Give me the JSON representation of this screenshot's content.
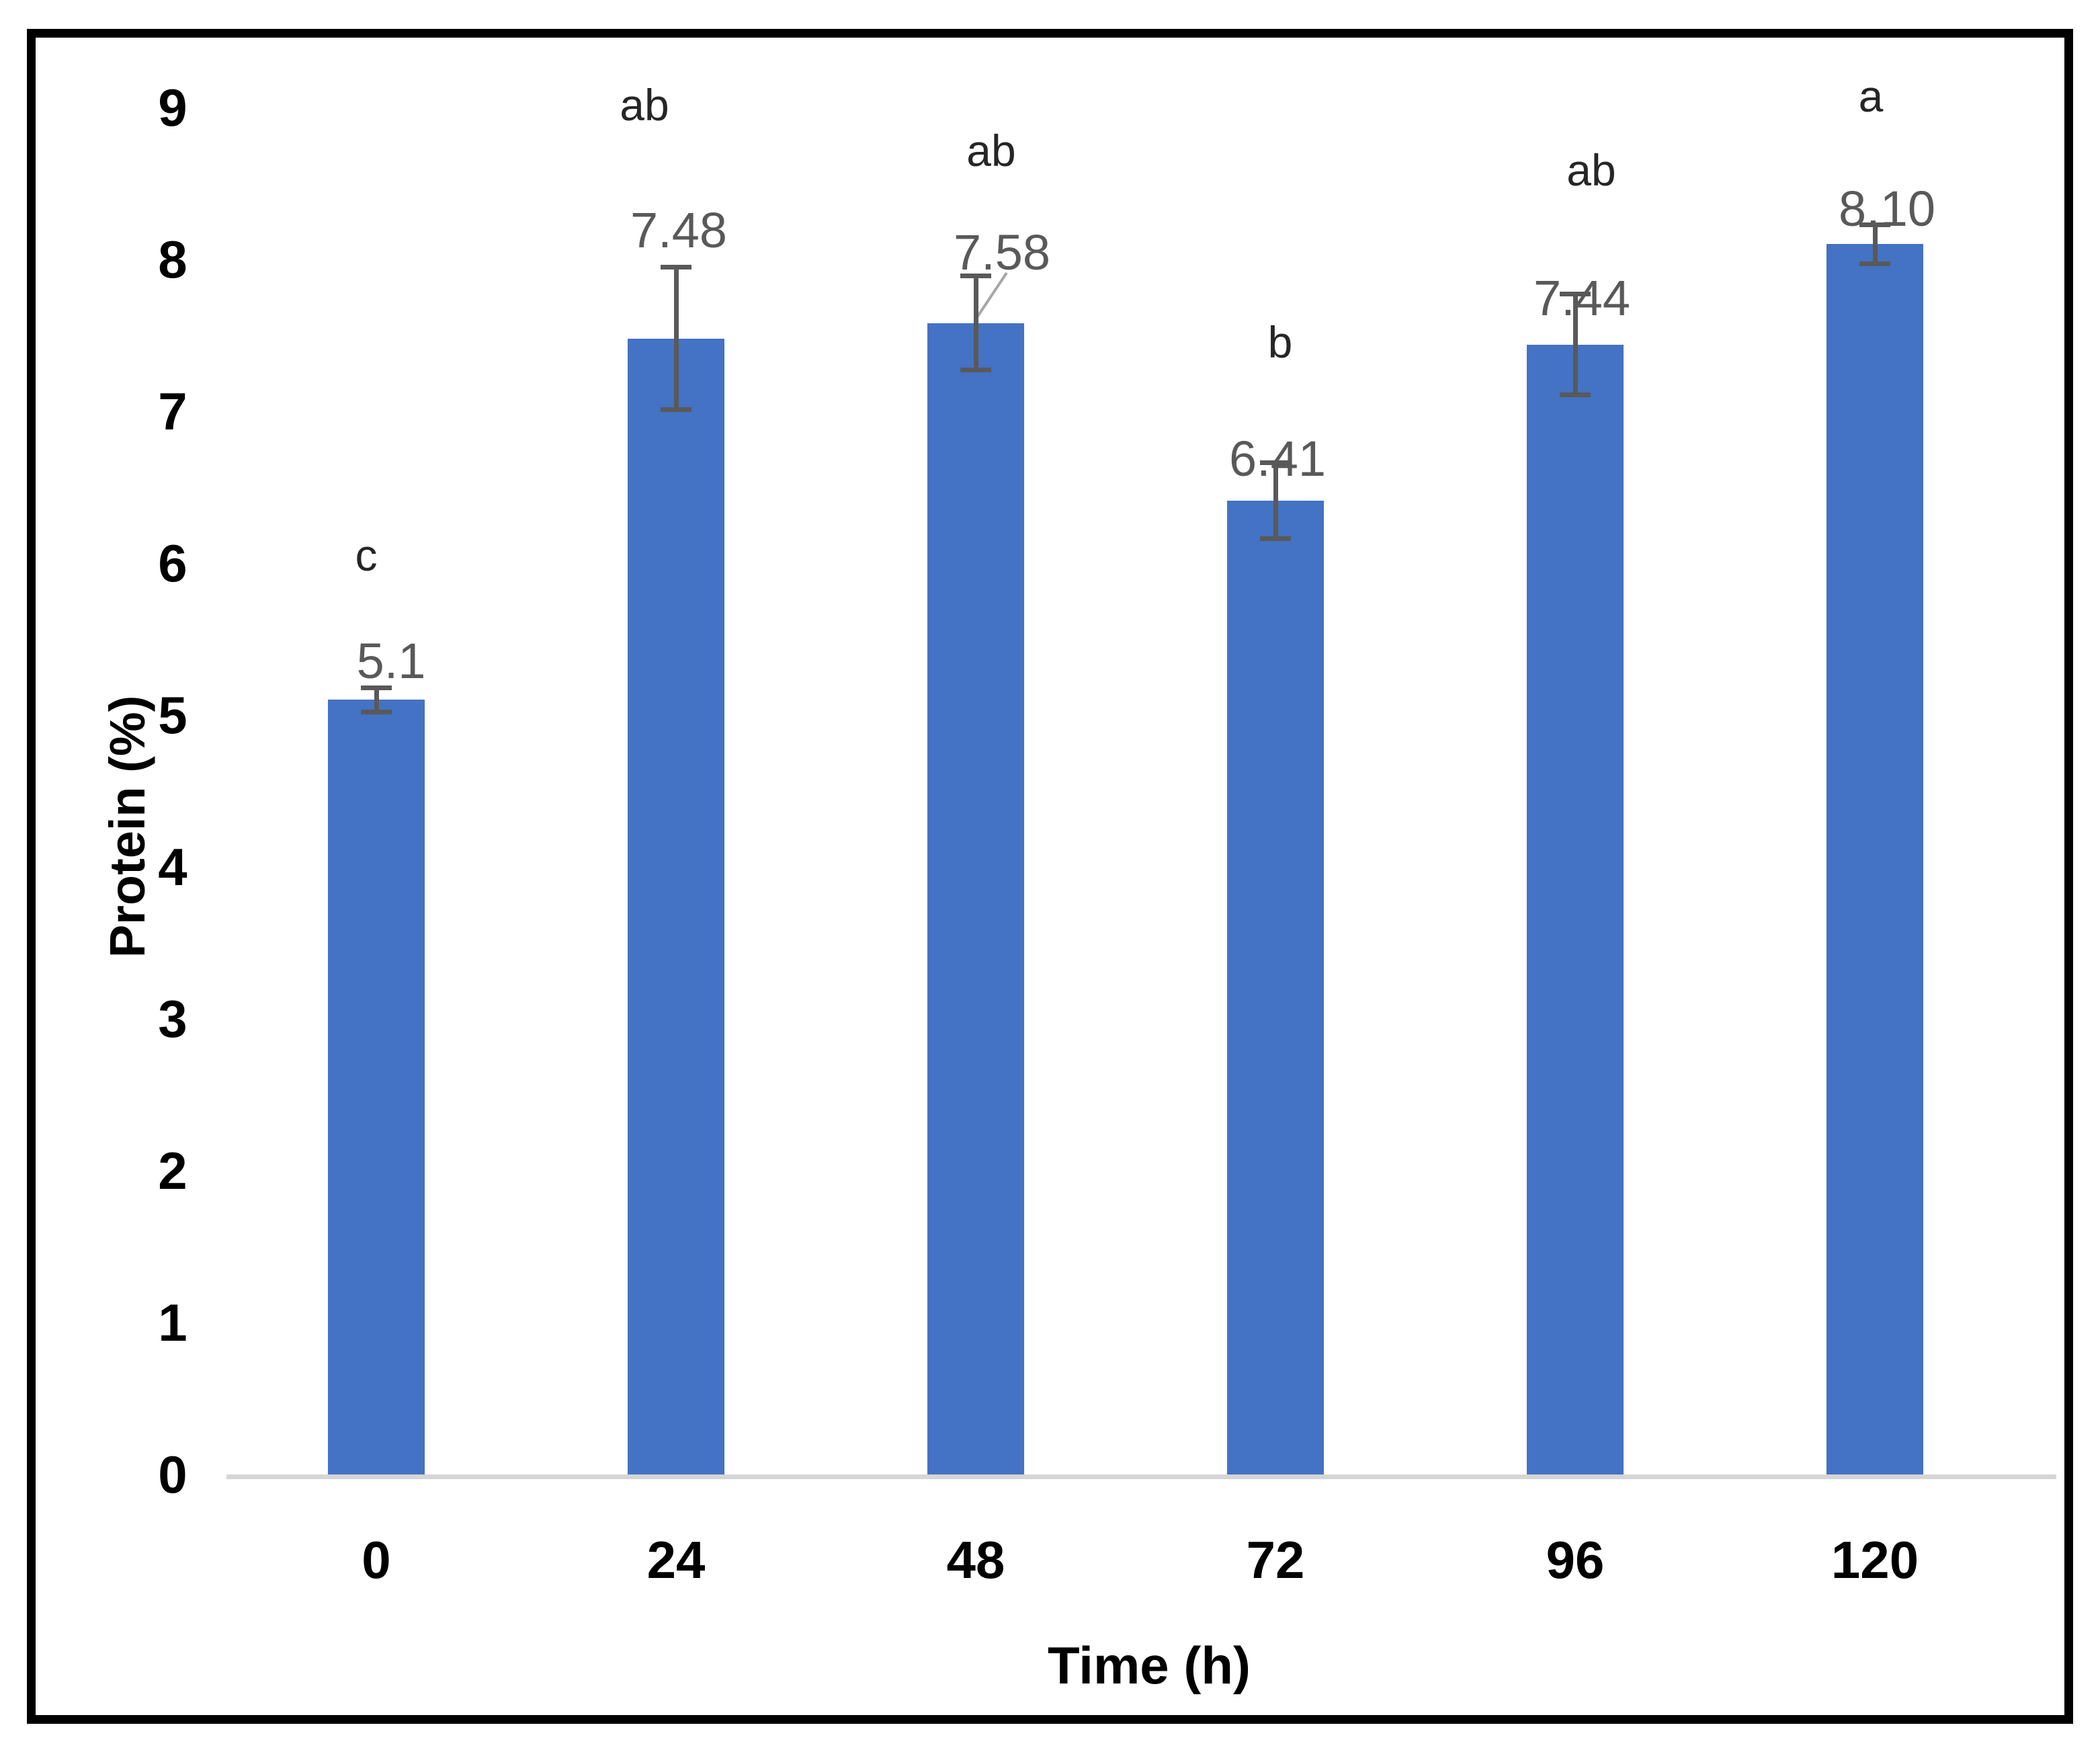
{
  "chart_data": {
    "type": "bar",
    "title": "",
    "xlabel": "Time (h)",
    "ylabel": "Protein (%)",
    "categories": [
      "0",
      "24",
      "48",
      "72",
      "96",
      "120"
    ],
    "values": [
      5.1,
      7.48,
      7.58,
      6.41,
      7.44,
      8.1
    ],
    "data_labels": [
      "5.1",
      "7.48",
      "7.58",
      "6.41",
      "7.44",
      "8.10"
    ],
    "significance_letters": [
      "c",
      "ab",
      "ab",
      "b",
      "ab",
      "a"
    ],
    "error_bars": [
      0.08,
      0.47,
      0.31,
      0.25,
      0.33,
      0.13
    ],
    "ylim": [
      0,
      9
    ],
    "yticks": [
      "0",
      "1",
      "2",
      "3",
      "4",
      "5",
      "6",
      "7",
      "8",
      "9"
    ],
    "grid": false,
    "legend": "none",
    "colors": {
      "bar": "#4472C4",
      "error_bar": "#595959",
      "data_label": "#595959",
      "letter": "#262626",
      "tick_label": "#000000",
      "axis_line": "#D6D6D6",
      "frame_border": "#000000",
      "leader_line": "#A6A6A6"
    }
  }
}
